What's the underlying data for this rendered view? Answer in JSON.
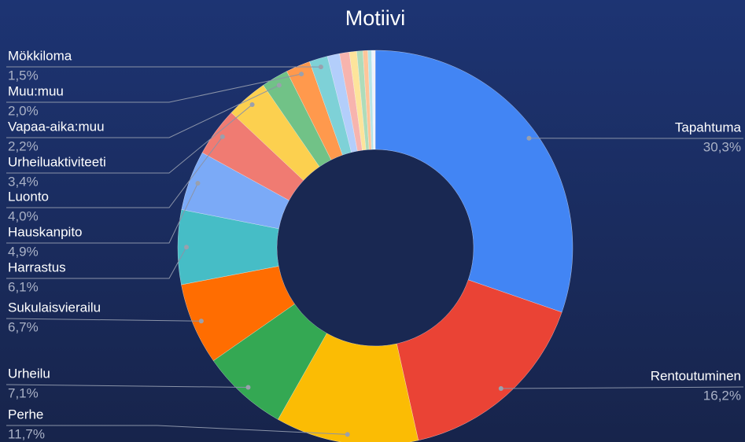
{
  "chart_data": {
    "type": "donut",
    "title": "Motiivi",
    "categories": [
      "Tapahtuma",
      "Rentoutuminen",
      "Perhe",
      "Urheilu",
      "Sukulaisvierailu",
      "Harrastus",
      "Hauskanpito",
      "Luonto",
      "Urheiluaktiviteeti",
      "Vapaa-aika:muu",
      "Muu:muu",
      "Mökkiloma",
      null,
      null,
      null,
      null,
      null,
      null,
      null,
      null
    ],
    "values": [
      30.3,
      16.2,
      11.7,
      7.1,
      6.7,
      6.1,
      4.9,
      4.0,
      3.4,
      2.2,
      2.0,
      1.5,
      1.0,
      0.8,
      0.6,
      0.5,
      0.4,
      0.3,
      0.2,
      0.1
    ],
    "value_labels": [
      "30,3%",
      "16,2%",
      "11,7%",
      "7,1%",
      "6,7%",
      "6,1%",
      "4,9%",
      "4,0%",
      "3,4%",
      "2,2%",
      "2,0%",
      "1,5%",
      null,
      null,
      null,
      null,
      null,
      null,
      null,
      null
    ],
    "colors": [
      "#4285f4",
      "#ea4335",
      "#fbbc04",
      "#34a853",
      "#ff6d01",
      "#46bdc6",
      "#7baaf7",
      "#f07b72",
      "#fcd04f",
      "#71c287",
      "#ff994d",
      "#7ed1d7",
      "#b3cefb",
      "#f7b4ae",
      "#fde49b",
      "#aedcba",
      "#ffc599",
      "#b5e5e8",
      "#ecf3fe",
      "#fdeceb"
    ]
  }
}
